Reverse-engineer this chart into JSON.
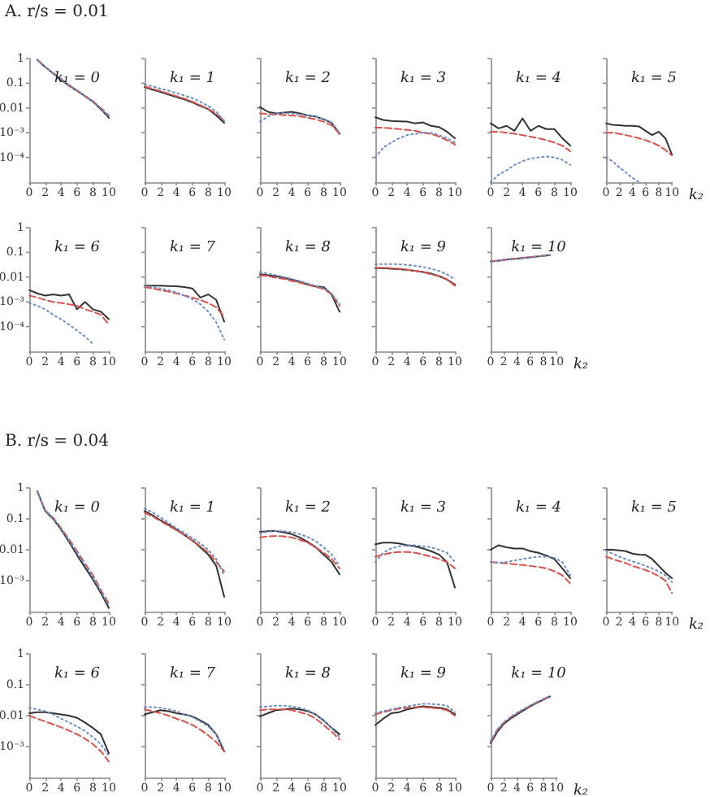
{
  "chart_data": [
    {
      "type": "line",
      "title": "k₁ = 0",
      "annotations": [
        "A. r/s = 0.01"
      ],
      "x": [
        1,
        2,
        3,
        4,
        5,
        6,
        7,
        8,
        9,
        10
      ],
      "xlim": [
        0,
        10
      ],
      "xticks": [
        0,
        2,
        4,
        6,
        8,
        10
      ],
      "ylim": [
        1e-05,
        1
      ],
      "yticks": [
        1,
        0.1,
        0.01,
        {
          "value": 0.001,
          "label": "10⁻³"
        },
        {
          "value": 0.0001,
          "label": "10⁻⁴"
        }
      ],
      "log": true,
      "marker": "none",
      "series": [
        {
          "color": "#333333",
          "line_style": "solid",
          "values": [
            0.9,
            0.45,
            0.25,
            0.14,
            0.08,
            0.05,
            0.03,
            0.018,
            0.009,
            0.004
          ]
        },
        {
          "color": "#d9534f",
          "line_style": "dashed",
          "values": [
            0.88,
            0.46,
            0.26,
            0.15,
            0.085,
            0.052,
            0.031,
            0.019,
            0.01,
            0.005
          ]
        },
        {
          "color": "#6a8cc7",
          "line_style": "dotted",
          "values": [
            0.87,
            0.45,
            0.25,
            0.145,
            0.082,
            0.05,
            0.03,
            0.018,
            0.0095,
            0.0045
          ]
        }
      ]
    },
    {
      "type": "line",
      "title": "k₁ = 1",
      "tick_labels": "x",
      "x": [
        0,
        1,
        2,
        3,
        4,
        5,
        6,
        7,
        8,
        9,
        10
      ],
      "xlim": [
        0,
        10
      ],
      "xticks": [
        0,
        2,
        4,
        6,
        8,
        10
      ],
      "ylim": [
        1e-05,
        1
      ],
      "yticks": [
        {
          "value": 1,
          "label": null
        },
        {
          "value": 0.1,
          "label": null
        },
        {
          "value": 0.01,
          "label": null
        },
        {
          "value": 0.001,
          "label": null
        },
        {
          "value": 0.0001,
          "label": null
        }
      ],
      "log": true,
      "marker": "none",
      "series": [
        {
          "color": "#333333",
          "line_style": "solid",
          "values": [
            0.07,
            0.055,
            0.045,
            0.035,
            0.028,
            0.022,
            0.017,
            0.012,
            0.009,
            0.005,
            0.0025
          ]
        },
        {
          "color": "#d9534f",
          "line_style": "dashed",
          "values": [
            0.075,
            0.06,
            0.048,
            0.038,
            0.03,
            0.024,
            0.018,
            0.013,
            0.009,
            0.006,
            0.003
          ]
        },
        {
          "color": "#6a8cc7",
          "line_style": "dotted",
          "values": [
            0.09,
            0.075,
            0.06,
            0.05,
            0.04,
            0.032,
            0.025,
            0.018,
            0.012,
            0.007,
            0.003
          ]
        }
      ]
    },
    {
      "type": "line",
      "title": "k₁ = 2",
      "tick_labels": "x",
      "x": [
        0,
        1,
        2,
        3,
        4,
        5,
        6,
        7,
        8,
        9,
        10
      ],
      "xlim": [
        0,
        10
      ],
      "xticks": [
        0,
        2,
        4,
        6,
        8,
        10
      ],
      "ylim": [
        1e-05,
        1
      ],
      "yticks": [
        {
          "value": 1,
          "label": null
        },
        {
          "value": 0.1,
          "label": null
        },
        {
          "value": 0.01,
          "label": null
        },
        {
          "value": 0.001,
          "label": null
        },
        {
          "value": 0.0001,
          "label": null
        }
      ],
      "log": true,
      "marker": "none",
      "series": [
        {
          "color": "#333333",
          "line_style": "solid",
          "values": [
            0.011,
            0.007,
            0.006,
            0.0065,
            0.007,
            0.006,
            0.005,
            0.0045,
            0.0035,
            0.0025,
            0.0009
          ]
        },
        {
          "color": "#d9534f",
          "line_style": "dashed",
          "values": [
            0.006,
            0.0058,
            0.0055,
            0.0052,
            0.005,
            0.0046,
            0.004,
            0.0035,
            0.0028,
            0.002,
            0.0009
          ]
        },
        {
          "color": "#6a8cc7",
          "line_style": "dotted",
          "values": [
            0.0028,
            0.0045,
            0.006,
            0.0062,
            0.006,
            0.0055,
            0.005,
            0.0044,
            0.0036,
            0.0026,
            0.001
          ]
        }
      ]
    },
    {
      "type": "line",
      "title": "k₁ = 3",
      "tick_labels": "x",
      "x": [
        0,
        1,
        2,
        3,
        4,
        5,
        6,
        7,
        8,
        9,
        10
      ],
      "xlim": [
        0,
        10
      ],
      "xticks": [
        0,
        2,
        4,
        6,
        8,
        10
      ],
      "ylim": [
        1e-05,
        1
      ],
      "yticks": [
        {
          "value": 1,
          "label": null
        },
        {
          "value": 0.1,
          "label": null
        },
        {
          "value": 0.01,
          "label": null
        },
        {
          "value": 0.001,
          "label": null
        },
        {
          "value": 0.0001,
          "label": null
        }
      ],
      "log": true,
      "marker": "none",
      "series": [
        {
          "color": "#333333",
          "line_style": "solid",
          "values": [
            0.0042,
            0.0033,
            0.003,
            0.0029,
            0.0028,
            0.0024,
            0.0026,
            0.0019,
            0.0017,
            0.0011,
            0.0006
          ]
        },
        {
          "color": "#d9534f",
          "line_style": "dashed",
          "values": [
            0.0016,
            0.0016,
            0.0015,
            0.0014,
            0.0013,
            0.0012,
            0.001,
            0.0009,
            0.0007,
            0.0005,
            0.00033
          ]
        },
        {
          "color": "#6a8cc7",
          "line_style": "dotted",
          "values": [
            0.0001,
            0.00025,
            0.0004,
            0.0006,
            0.0008,
            0.0009,
            0.001,
            0.001,
            0.0008,
            0.0006,
            0.0004
          ]
        }
      ]
    },
    {
      "type": "line",
      "title": "k₁ = 4",
      "tick_labels": "x",
      "x": [
        0,
        1,
        2,
        3,
        4,
        5,
        6,
        7,
        8,
        9,
        10
      ],
      "xlim": [
        0,
        10
      ],
      "xticks": [
        0,
        2,
        4,
        6,
        8,
        10
      ],
      "ylim": [
        1e-05,
        1
      ],
      "yticks": [
        {
          "value": 1,
          "label": null
        },
        {
          "value": 0.1,
          "label": null
        },
        {
          "value": 0.01,
          "label": null
        },
        {
          "value": 0.001,
          "label": null
        },
        {
          "value": 0.0001,
          "label": null
        }
      ],
      "log": true,
      "marker": "none",
      "series": [
        {
          "color": "#333333",
          "line_style": "solid",
          "values": [
            0.0024,
            0.0015,
            0.0019,
            0.0012,
            0.0038,
            0.0012,
            0.0019,
            0.0014,
            0.0014,
            0.0006,
            0.0003
          ]
        },
        {
          "color": "#d9534f",
          "line_style": "dashed",
          "values": [
            0.0011,
            0.0011,
            0.001,
            0.0009,
            0.0008,
            0.0007,
            0.0006,
            0.0005,
            0.0004,
            0.0003,
            0.00018
          ]
        },
        {
          "color": "#6a8cc7",
          "line_style": "dotted",
          "values": [
            1e-05,
            2e-05,
            3e-05,
            5e-05,
            7e-05,
            9e-05,
            0.0001,
            0.00011,
            0.0001,
            8e-05,
            5e-05
          ]
        }
      ]
    },
    {
      "type": "line",
      "title": "k₁ = 5",
      "tick_labels": "x",
      "xlabel": "k₂",
      "x": [
        0,
        1,
        2,
        3,
        4,
        5,
        6,
        7,
        8,
        9,
        10
      ],
      "xlim": [
        0,
        10
      ],
      "xticks": [
        0,
        2,
        4,
        6,
        8,
        10
      ],
      "ylim": [
        1e-05,
        1
      ],
      "yticks": [
        {
          "value": 1,
          "label": null
        },
        {
          "value": 0.1,
          "label": null
        },
        {
          "value": 0.01,
          "label": null
        },
        {
          "value": 0.001,
          "label": null
        },
        {
          "value": 0.0001,
          "label": null
        }
      ],
      "log": true,
      "marker": "none",
      "series": [
        {
          "color": "#333333",
          "line_style": "solid",
          "values": [
            0.0024,
            0.0021,
            0.002,
            0.0019,
            0.0019,
            0.0018,
            0.0012,
            0.0008,
            0.0011,
            0.0006,
            0.00013
          ]
        },
        {
          "color": "#d9534f",
          "line_style": "dashed",
          "values": [
            0.001,
            0.001,
            0.0009,
            0.0008,
            0.0007,
            0.0006,
            0.0005,
            0.0004,
            0.0003,
            0.0002,
            0.00012
          ]
        },
        {
          "color": "#6a8cc7",
          "line_style": "dotted",
          "values": [
            0.0001,
            7e-05,
            4e-05,
            2.5e-05,
            1.5e-05,
            1e-05,
            null,
            null,
            null,
            null,
            null
          ]
        }
      ]
    },
    {
      "type": "line",
      "title": "k₁ = 6",
      "x": [
        0,
        1,
        2,
        3,
        4,
        5,
        6,
        7,
        8,
        9,
        10
      ],
      "xlim": [
        0,
        10
      ],
      "xticks": [
        0,
        2,
        4,
        6,
        8,
        10
      ],
      "ylim": [
        1e-05,
        1
      ],
      "yticks": [
        1,
        0.1,
        0.01,
        {
          "value": 0.001,
          "label": "10⁻³"
        },
        {
          "value": 0.0001,
          "label": "10⁻⁴"
        }
      ],
      "log": true,
      "marker": "none",
      "series": [
        {
          "color": "#333333",
          "line_style": "solid",
          "values": [
            0.003,
            0.0022,
            0.0018,
            0.002,
            0.0018,
            0.002,
            0.0005,
            0.001,
            0.0005,
            0.0004,
            0.0002
          ]
        },
        {
          "color": "#d9534f",
          "line_style": "dashed",
          "values": [
            0.0018,
            0.0015,
            0.0012,
            0.001,
            0.0009,
            0.0008,
            0.0007,
            0.0005,
            0.0004,
            0.0003,
            0.00012
          ]
        },
        {
          "color": "#6a8cc7",
          "line_style": "dotted",
          "values": [
            0.0009,
            0.0007,
            0.0005,
            0.0003,
            0.0002,
            0.00012,
            7e-05,
            4e-05,
            2e-05,
            null,
            null
          ]
        }
      ]
    },
    {
      "type": "line",
      "title": "k₁ = 7",
      "tick_labels": "x",
      "x": [
        0,
        1,
        2,
        3,
        4,
        5,
        6,
        7,
        8,
        9,
        10
      ],
      "xlim": [
        0,
        10
      ],
      "xticks": [
        0,
        2,
        4,
        6,
        8,
        10
      ],
      "ylim": [
        1e-05,
        1
      ],
      "yticks": [
        {
          "value": 1,
          "label": null
        },
        {
          "value": 0.1,
          "label": null
        },
        {
          "value": 0.01,
          "label": null
        },
        {
          "value": 0.001,
          "label": null
        },
        {
          "value": 0.0001,
          "label": null
        }
      ],
      "log": true,
      "marker": "none",
      "series": [
        {
          "color": "#333333",
          "line_style": "solid",
          "values": [
            0.0045,
            0.0045,
            0.0045,
            0.0044,
            0.0043,
            0.004,
            0.0035,
            0.0015,
            0.002,
            0.0012,
            0.00016
          ]
        },
        {
          "color": "#d9534f",
          "line_style": "dashed",
          "values": [
            0.004,
            0.0035,
            0.003,
            0.0026,
            0.0022,
            0.0018,
            0.0015,
            0.0012,
            0.0009,
            0.0006,
            0.00025
          ]
        },
        {
          "color": "#6a8cc7",
          "line_style": "dotted",
          "values": [
            0.0045,
            0.004,
            0.0035,
            0.003,
            0.0024,
            0.0018,
            0.0013,
            0.0008,
            0.0004,
            0.00015,
            3e-05
          ]
        }
      ]
    },
    {
      "type": "line",
      "title": "k₁ = 8",
      "tick_labels": "x",
      "x": [
        0,
        1,
        2,
        3,
        4,
        5,
        6,
        7,
        8,
        9,
        10
      ],
      "xlim": [
        0,
        10
      ],
      "xticks": [
        0,
        2,
        4,
        6,
        8,
        10
      ],
      "ylim": [
        1e-05,
        1
      ],
      "yticks": [
        {
          "value": 1,
          "label": null
        },
        {
          "value": 0.1,
          "label": null
        },
        {
          "value": 0.01,
          "label": null
        },
        {
          "value": 0.001,
          "label": null
        },
        {
          "value": 0.0001,
          "label": null
        }
      ],
      "log": true,
      "marker": "none",
      "series": [
        {
          "color": "#333333",
          "line_style": "solid",
          "values": [
            0.013,
            0.012,
            0.011,
            0.0095,
            0.008,
            0.0065,
            0.005,
            0.0042,
            0.004,
            0.002,
            0.0004
          ]
        },
        {
          "color": "#d9534f",
          "line_style": "dashed",
          "values": [
            0.012,
            0.011,
            0.0095,
            0.0085,
            0.007,
            0.006,
            0.005,
            0.004,
            0.0033,
            0.002,
            0.0007
          ]
        },
        {
          "color": "#6a8cc7",
          "line_style": "dotted",
          "values": [
            0.016,
            0.014,
            0.012,
            0.01,
            0.0085,
            0.007,
            0.0055,
            0.0045,
            0.0035,
            0.0022,
            0.0008
          ]
        }
      ]
    },
    {
      "type": "line",
      "title": "k₁ = 9",
      "tick_labels": "x",
      "x": [
        0,
        1,
        2,
        3,
        4,
        5,
        6,
        7,
        8,
        9,
        10
      ],
      "xlim": [
        0,
        10
      ],
      "xticks": [
        0,
        2,
        4,
        6,
        8,
        10
      ],
      "ylim": [
        1e-05,
        1
      ],
      "yticks": [
        {
          "value": 1,
          "label": null
        },
        {
          "value": 0.1,
          "label": null
        },
        {
          "value": 0.01,
          "label": null
        },
        {
          "value": 0.001,
          "label": null
        },
        {
          "value": 0.0001,
          "label": null
        }
      ],
      "log": true,
      "marker": "none",
      "series": [
        {
          "color": "#333333",
          "line_style": "solid",
          "values": [
            0.023,
            0.023,
            0.022,
            0.021,
            0.02,
            0.018,
            0.016,
            0.014,
            0.011,
            0.008,
            0.005
          ]
        },
        {
          "color": "#d9534f",
          "line_style": "dashed",
          "values": [
            0.024,
            0.024,
            0.023,
            0.022,
            0.02,
            0.018,
            0.016,
            0.013,
            0.011,
            0.008,
            0.0045
          ]
        },
        {
          "color": "#6a8cc7",
          "line_style": "dotted",
          "values": [
            0.033,
            0.034,
            0.034,
            0.033,
            0.031,
            0.029,
            0.026,
            0.022,
            0.018,
            0.013,
            0.008
          ]
        }
      ]
    },
    {
      "type": "line",
      "title": "k₁ = 10",
      "tick_labels": "x",
      "xlabel": "k₂",
      "x": [
        0,
        1,
        2,
        3,
        4,
        5,
        6,
        7,
        8,
        9
      ],
      "xlim": [
        0,
        10
      ],
      "xticks": [
        0,
        2,
        4,
        6,
        8,
        10
      ],
      "ylim": [
        1e-05,
        1
      ],
      "yticks": [
        {
          "value": 1,
          "label": null
        },
        {
          "value": 0.1,
          "label": null
        },
        {
          "value": 0.01,
          "label": null
        },
        {
          "value": 0.001,
          "label": null
        },
        {
          "value": 0.0001,
          "label": null
        }
      ],
      "log": true,
      "marker": "none",
      "series": [
        {
          "color": "#333333",
          "line_style": "solid",
          "values": [
            0.043,
            0.046,
            0.05,
            0.053,
            0.056,
            0.06,
            0.064,
            0.068,
            0.073,
            0.078
          ]
        },
        {
          "color": "#d9534f",
          "line_style": "dashed",
          "values": [
            0.044,
            0.047,
            0.05,
            0.054,
            0.057,
            0.061,
            0.065,
            0.069,
            0.074,
            0.079
          ]
        },
        {
          "color": "#6a8cc7",
          "line_style": "dotted",
          "values": [
            0.042,
            0.045,
            0.049,
            0.052,
            0.056,
            0.059,
            0.063,
            0.067,
            0.072,
            0.077
          ]
        }
      ]
    },
    {
      "type": "line",
      "title": "k₁ = 0",
      "annotations": [
        "B. r/s = 0.04"
      ],
      "x": [
        1,
        2,
        3,
        4,
        5,
        6,
        7,
        8,
        9,
        10
      ],
      "xlim": [
        0,
        10
      ],
      "xticks": [
        0,
        2,
        4,
        6,
        8,
        10
      ],
      "ylim": [
        0.0001,
        1
      ],
      "yticks": [
        1,
        0.1,
        0.01,
        {
          "value": 0.001,
          "label": "10⁻³"
        }
      ],
      "log": true,
      "marker": "none",
      "series": [
        {
          "color": "#333333",
          "line_style": "solid",
          "values": [
            0.8,
            0.18,
            0.1,
            0.045,
            0.018,
            0.0067,
            0.0027,
            0.0011,
            0.0004,
            0.00013
          ]
        },
        {
          "color": "#d9534f",
          "line_style": "dashed",
          "values": [
            0.78,
            0.19,
            0.11,
            0.05,
            0.022,
            0.009,
            0.0036,
            0.0015,
            0.0005,
            0.00018
          ]
        },
        {
          "color": "#6a8cc7",
          "line_style": "dotted",
          "values": [
            0.79,
            0.19,
            0.105,
            0.048,
            0.02,
            0.008,
            0.0033,
            0.0013,
            0.00045,
            0.00016
          ]
        }
      ]
    },
    {
      "type": "line",
      "title": "k₁ = 1",
      "tick_labels": "x",
      "x": [
        0,
        1,
        2,
        3,
        4,
        5,
        6,
        7,
        8,
        9,
        10
      ],
      "xlim": [
        0,
        10
      ],
      "xticks": [
        0,
        2,
        4,
        6,
        8,
        10
      ],
      "ylim": [
        0.0001,
        1
      ],
      "yticks": [
        {
          "value": 1,
          "label": null
        },
        {
          "value": 0.1,
          "label": null
        },
        {
          "value": 0.01,
          "label": null
        },
        {
          "value": 0.001,
          "label": null
        }
      ],
      "log": true,
      "marker": "none",
      "series": [
        {
          "color": "#333333",
          "line_style": "solid",
          "values": [
            0.18,
            0.13,
            0.09,
            0.065,
            0.045,
            0.03,
            0.02,
            0.012,
            0.007,
            0.003,
            0.0003
          ]
        },
        {
          "color": "#d9534f",
          "line_style": "dashed",
          "values": [
            0.16,
            0.12,
            0.085,
            0.06,
            0.043,
            0.03,
            0.02,
            0.013,
            0.008,
            0.004,
            0.002
          ]
        },
        {
          "color": "#6a8cc7",
          "line_style": "dotted",
          "values": [
            0.22,
            0.16,
            0.11,
            0.075,
            0.05,
            0.035,
            0.024,
            0.016,
            0.01,
            0.005,
            0.0015
          ]
        }
      ]
    },
    {
      "type": "line",
      "title": "k₁ = 2",
      "tick_labels": "x",
      "x": [
        0,
        1,
        2,
        3,
        4,
        5,
        6,
        7,
        8,
        9,
        10
      ],
      "xlim": [
        0,
        10
      ],
      "xticks": [
        0,
        2,
        4,
        6,
        8,
        10
      ],
      "ylim": [
        0.0001,
        1
      ],
      "yticks": [
        {
          "value": 1,
          "label": null
        },
        {
          "value": 0.1,
          "label": null
        },
        {
          "value": 0.01,
          "label": null
        },
        {
          "value": 0.001,
          "label": null
        }
      ],
      "log": true,
      "marker": "none",
      "series": [
        {
          "color": "#333333",
          "line_style": "solid",
          "values": [
            0.038,
            0.04,
            0.04,
            0.037,
            0.032,
            0.025,
            0.018,
            0.012,
            0.007,
            0.004,
            0.0016
          ]
        },
        {
          "color": "#d9534f",
          "line_style": "dashed",
          "values": [
            0.025,
            0.027,
            0.028,
            0.027,
            0.025,
            0.021,
            0.017,
            0.012,
            0.008,
            0.005,
            0.0025
          ]
        },
        {
          "color": "#6a8cc7",
          "line_style": "dotted",
          "values": [
            0.035,
            0.038,
            0.04,
            0.04,
            0.037,
            0.032,
            0.026,
            0.019,
            0.012,
            0.007,
            0.003
          ]
        }
      ]
    },
    {
      "type": "line",
      "title": "k₁ = 3",
      "tick_labels": "x",
      "x": [
        0,
        1,
        2,
        3,
        4,
        5,
        6,
        7,
        8,
        9,
        10
      ],
      "xlim": [
        0,
        10
      ],
      "xticks": [
        0,
        2,
        4,
        6,
        8,
        10
      ],
      "ylim": [
        0.0001,
        1
      ],
      "yticks": [
        {
          "value": 1,
          "label": null
        },
        {
          "value": 0.1,
          "label": null
        },
        {
          "value": 0.01,
          "label": null
        },
        {
          "value": 0.001,
          "label": null
        }
      ],
      "log": true,
      "marker": "none",
      "series": [
        {
          "color": "#333333",
          "line_style": "solid",
          "values": [
            0.015,
            0.017,
            0.017,
            0.016,
            0.014,
            0.013,
            0.011,
            0.009,
            0.007,
            0.004,
            0.0006
          ]
        },
        {
          "color": "#d9534f",
          "line_style": "dashed",
          "values": [
            0.006,
            0.007,
            0.008,
            0.0085,
            0.0085,
            0.008,
            0.007,
            0.006,
            0.005,
            0.004,
            0.0025
          ]
        },
        {
          "color": "#6a8cc7",
          "line_style": "dotted",
          "values": [
            0.004,
            0.008,
            0.011,
            0.013,
            0.014,
            0.014,
            0.013,
            0.012,
            0.01,
            0.008,
            0.004
          ]
        }
      ]
    },
    {
      "type": "line",
      "title": "k₁ = 4",
      "tick_labels": "x",
      "x": [
        0,
        1,
        2,
        3,
        4,
        5,
        6,
        7,
        8,
        9,
        10
      ],
      "xlim": [
        0,
        10
      ],
      "xticks": [
        0,
        2,
        4,
        6,
        8,
        10
      ],
      "ylim": [
        0.0001,
        1
      ],
      "yticks": [
        {
          "value": 1,
          "label": null
        },
        {
          "value": 0.1,
          "label": null
        },
        {
          "value": 0.01,
          "label": null
        },
        {
          "value": 0.001,
          "label": null
        }
      ],
      "log": true,
      "marker": "none",
      "series": [
        {
          "color": "#333333",
          "line_style": "solid",
          "values": [
            0.01,
            0.014,
            0.012,
            0.011,
            0.011,
            0.009,
            0.008,
            0.0065,
            0.005,
            0.0025,
            0.0012
          ]
        },
        {
          "color": "#d9534f",
          "line_style": "dashed",
          "values": [
            0.004,
            0.0038,
            0.0036,
            0.0034,
            0.0032,
            0.003,
            0.0028,
            0.0025,
            0.002,
            0.0015,
            0.0008
          ]
        },
        {
          "color": "#6a8cc7",
          "line_style": "dotted",
          "values": [
            0.004,
            0.0038,
            0.004,
            0.0045,
            0.005,
            0.0055,
            0.006,
            0.006,
            0.0055,
            0.004,
            0.0015
          ]
        }
      ]
    },
    {
      "type": "line",
      "title": "k₁ = 5",
      "tick_labels": "x",
      "xlabel": "k₂",
      "x": [
        0,
        1,
        2,
        3,
        4,
        5,
        6,
        7,
        8,
        9,
        10
      ],
      "xlim": [
        0,
        10
      ],
      "xticks": [
        0,
        2,
        4,
        6,
        8,
        10
      ],
      "ylim": [
        0.0001,
        1
      ],
      "yticks": [
        {
          "value": 1,
          "label": null
        },
        {
          "value": 0.1,
          "label": null
        },
        {
          "value": 0.01,
          "label": null
        },
        {
          "value": 0.001,
          "label": null
        }
      ],
      "log": true,
      "marker": "none",
      "series": [
        {
          "color": "#333333",
          "line_style": "solid",
          "values": [
            0.01,
            0.01,
            0.0095,
            0.009,
            0.0075,
            0.007,
            0.0068,
            0.005,
            0.003,
            0.0018,
            0.0012
          ]
        },
        {
          "color": "#d9534f",
          "line_style": "dashed",
          "values": [
            0.006,
            0.005,
            0.0043,
            0.0037,
            0.003,
            0.0026,
            0.0022,
            0.0018,
            0.0014,
            0.001,
            0.0004
          ]
        },
        {
          "color": "#6a8cc7",
          "line_style": "dotted",
          "values": [
            0.0095,
            0.0075,
            0.006,
            0.005,
            0.0042,
            0.0036,
            0.003,
            0.0025,
            0.002,
            0.0015,
            0.0009
          ]
        }
      ]
    },
    {
      "type": "line",
      "title": "k₁ = 6",
      "x": [
        0,
        1,
        2,
        3,
        4,
        5,
        6,
        7,
        8,
        9,
        10
      ],
      "xlim": [
        0,
        10
      ],
      "xticks": [
        0,
        2,
        4,
        6,
        8,
        10
      ],
      "ylim": [
        0.0001,
        1
      ],
      "yticks": [
        1,
        0.1,
        0.01,
        {
          "value": 0.001,
          "label": "10⁻³"
        }
      ],
      "log": true,
      "marker": "none",
      "series": [
        {
          "color": "#333333",
          "line_style": "solid",
          "values": [
            0.012,
            0.013,
            0.013,
            0.012,
            0.011,
            0.01,
            0.0085,
            0.006,
            0.004,
            0.0025,
            0.0006
          ]
        },
        {
          "color": "#d9534f",
          "line_style": "dashed",
          "values": [
            0.01,
            0.008,
            0.0065,
            0.0052,
            0.0042,
            0.0033,
            0.0025,
            0.0018,
            0.0012,
            0.0007,
            0.00033
          ]
        },
        {
          "color": "#6a8cc7",
          "line_style": "dotted",
          "values": [
            0.018,
            0.016,
            0.014,
            0.011,
            0.008,
            0.006,
            0.0045,
            0.0032,
            0.002,
            0.0012,
            0.0005
          ]
        }
      ]
    },
    {
      "type": "line",
      "title": "k₁ = 7",
      "tick_labels": "x",
      "x": [
        0,
        1,
        2,
        3,
        4,
        5,
        6,
        7,
        8,
        9,
        10
      ],
      "xlim": [
        0,
        10
      ],
      "xticks": [
        0,
        2,
        4,
        6,
        8,
        10
      ],
      "ylim": [
        0.0001,
        1
      ],
      "yticks": [
        {
          "value": 1,
          "label": null
        },
        {
          "value": 0.1,
          "label": null
        },
        {
          "value": 0.01,
          "label": null
        },
        {
          "value": 0.001,
          "label": null
        }
      ],
      "log": true,
      "marker": "none",
      "series": [
        {
          "color": "#333333",
          "line_style": "solid",
          "values": [
            0.011,
            0.013,
            0.015,
            0.014,
            0.012,
            0.011,
            0.0095,
            0.007,
            0.005,
            0.0025,
            0.0007
          ]
        },
        {
          "color": "#d9534f",
          "line_style": "dashed",
          "values": [
            0.016,
            0.014,
            0.012,
            0.01,
            0.008,
            0.0065,
            0.005,
            0.0035,
            0.0023,
            0.0014,
            0.0007
          ]
        },
        {
          "color": "#6a8cc7",
          "line_style": "dotted",
          "values": [
            0.019,
            0.019,
            0.018,
            0.016,
            0.014,
            0.011,
            0.009,
            0.0065,
            0.0045,
            0.0025,
            0.0008
          ]
        }
      ]
    },
    {
      "type": "line",
      "title": "k₁ = 8",
      "tick_labels": "x",
      "x": [
        0,
        1,
        2,
        3,
        4,
        5,
        6,
        7,
        8,
        9,
        10
      ],
      "xlim": [
        0,
        10
      ],
      "xticks": [
        0,
        2,
        4,
        6,
        8,
        10
      ],
      "ylim": [
        0.0001,
        1
      ],
      "yticks": [
        {
          "value": 1,
          "label": null
        },
        {
          "value": 0.1,
          "label": null
        },
        {
          "value": 0.01,
          "label": null
        },
        {
          "value": 0.001,
          "label": null
        }
      ],
      "log": true,
      "marker": "none",
      "series": [
        {
          "color": "#333333",
          "line_style": "solid",
          "values": [
            0.0095,
            0.012,
            0.015,
            0.016,
            0.017,
            0.016,
            0.014,
            0.011,
            0.007,
            0.004,
            0.0025
          ]
        },
        {
          "color": "#d9534f",
          "line_style": "dashed",
          "values": [
            0.015,
            0.016,
            0.016,
            0.016,
            0.015,
            0.013,
            0.011,
            0.008,
            0.005,
            0.003,
            0.0017
          ]
        },
        {
          "color": "#6a8cc7",
          "line_style": "dotted",
          "values": [
            0.019,
            0.02,
            0.021,
            0.021,
            0.02,
            0.018,
            0.015,
            0.011,
            0.007,
            0.004,
            0.002
          ]
        }
      ]
    },
    {
      "type": "line",
      "title": "k₁ = 9",
      "tick_labels": "x",
      "x": [
        0,
        1,
        2,
        3,
        4,
        5,
        6,
        7,
        8,
        9,
        10
      ],
      "xlim": [
        0,
        10
      ],
      "xticks": [
        0,
        2,
        4,
        6,
        8,
        10
      ],
      "ylim": [
        0.0001,
        1
      ],
      "yticks": [
        {
          "value": 1,
          "label": null
        },
        {
          "value": 0.1,
          "label": null
        },
        {
          "value": 0.01,
          "label": null
        },
        {
          "value": 0.001,
          "label": null
        }
      ],
      "log": true,
      "marker": "none",
      "series": [
        {
          "color": "#333333",
          "line_style": "solid",
          "values": [
            0.005,
            0.008,
            0.012,
            0.013,
            0.016,
            0.018,
            0.02,
            0.019,
            0.018,
            0.016,
            0.011
          ]
        },
        {
          "color": "#d9534f",
          "line_style": "dashed",
          "values": [
            0.011,
            0.013,
            0.015,
            0.017,
            0.018,
            0.019,
            0.019,
            0.018,
            0.017,
            0.015,
            0.01
          ]
        },
        {
          "color": "#6a8cc7",
          "line_style": "dotted",
          "values": [
            0.012,
            0.014,
            0.016,
            0.018,
            0.02,
            0.022,
            0.024,
            0.024,
            0.023,
            0.021,
            0.013
          ]
        }
      ]
    },
    {
      "type": "line",
      "title": "k₁ = 10",
      "tick_labels": "x",
      "xlabel": "k₂",
      "x": [
        0,
        1,
        2,
        3,
        4,
        5,
        6,
        7,
        8,
        9
      ],
      "xlim": [
        0,
        10
      ],
      "xticks": [
        0,
        2,
        4,
        6,
        8,
        10
      ],
      "ylim": [
        0.0001,
        1
      ],
      "yticks": [
        {
          "value": 1,
          "label": null
        },
        {
          "value": 0.1,
          "label": null
        },
        {
          "value": 0.01,
          "label": null
        },
        {
          "value": 0.001,
          "label": null
        }
      ],
      "log": true,
      "marker": "none",
      "series": [
        {
          "color": "#333333",
          "line_style": "solid",
          "values": [
            0.0013,
            0.003,
            0.0055,
            0.008,
            0.011,
            0.015,
            0.02,
            0.026,
            0.033,
            0.042
          ]
        },
        {
          "color": "#d9534f",
          "line_style": "dashed",
          "values": [
            0.0014,
            0.0035,
            0.006,
            0.0088,
            0.012,
            0.016,
            0.021,
            0.027,
            0.034,
            0.043
          ]
        },
        {
          "color": "#6a8cc7",
          "line_style": "dotted",
          "values": [
            0.0015,
            0.0036,
            0.0062,
            0.009,
            0.0125,
            0.0165,
            0.0215,
            0.0275,
            0.035,
            0.044
          ]
        }
      ]
    }
  ]
}
